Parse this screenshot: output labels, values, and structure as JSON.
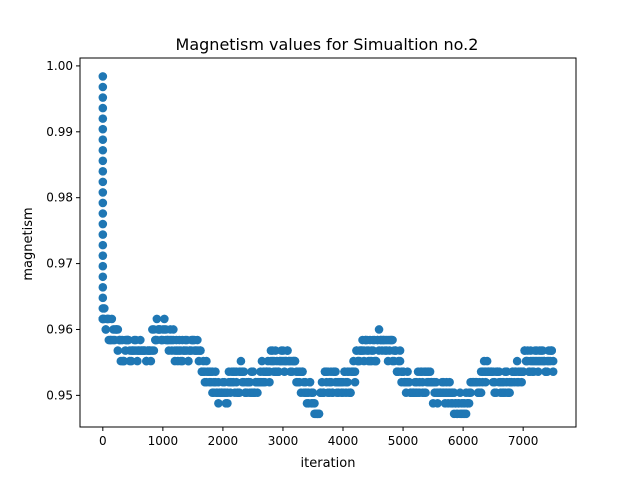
{
  "chart_data": {
    "type": "scatter",
    "title": "Magnetism values for Simualtion no.2",
    "xlabel": "iteration",
    "ylabel": "magnetism",
    "xlim": [
      -380,
      7880
    ],
    "ylim": [
      0.9452,
      1.0012
    ],
    "xticks": [
      0,
      1000,
      2000,
      3000,
      4000,
      5000,
      6000,
      7000
    ],
    "yticks": [
      0.95,
      0.96,
      0.97,
      0.98,
      0.99,
      1.0
    ],
    "xtick_labels": [
      "0",
      "1000",
      "2000",
      "3000",
      "4000",
      "5000",
      "6000",
      "7000"
    ],
    "ytick_labels": [
      "0.95",
      "0.96",
      "0.97",
      "0.98",
      "0.99",
      "1.00"
    ],
    "grid": false,
    "marker_color": "#1f77b4",
    "x_range": [
      0,
      7500
    ],
    "x_step": 25,
    "initial_value": 0.9984,
    "decay_step": 0.0016,
    "magnetism_trend": [
      [
        0,
        0.961
      ],
      [
        200,
        0.9595
      ],
      [
        300,
        0.9575
      ],
      [
        800,
        0.9575
      ],
      [
        950,
        0.9605
      ],
      [
        1100,
        0.958
      ],
      [
        1300,
        0.957
      ],
      [
        1500,
        0.9575
      ],
      [
        1650,
        0.955
      ],
      [
        1850,
        0.9515
      ],
      [
        2000,
        0.9505
      ],
      [
        2300,
        0.953
      ],
      [
        2500,
        0.952
      ],
      [
        2800,
        0.9545
      ],
      [
        3000,
        0.955
      ],
      [
        3200,
        0.954
      ],
      [
        3400,
        0.951
      ],
      [
        3550,
        0.948
      ],
      [
        3700,
        0.9515
      ],
      [
        3900,
        0.9525
      ],
      [
        4100,
        0.952
      ],
      [
        4300,
        0.956
      ],
      [
        4500,
        0.957
      ],
      [
        4650,
        0.9585
      ],
      [
        4900,
        0.956
      ],
      [
        5050,
        0.9525
      ],
      [
        5400,
        0.9515
      ],
      [
        5700,
        0.9505
      ],
      [
        5950,
        0.948
      ],
      [
        6150,
        0.951
      ],
      [
        6400,
        0.9535
      ],
      [
        6650,
        0.9515
      ],
      [
        6900,
        0.9535
      ],
      [
        7100,
        0.955
      ],
      [
        7500,
        0.955
      ]
    ]
  }
}
